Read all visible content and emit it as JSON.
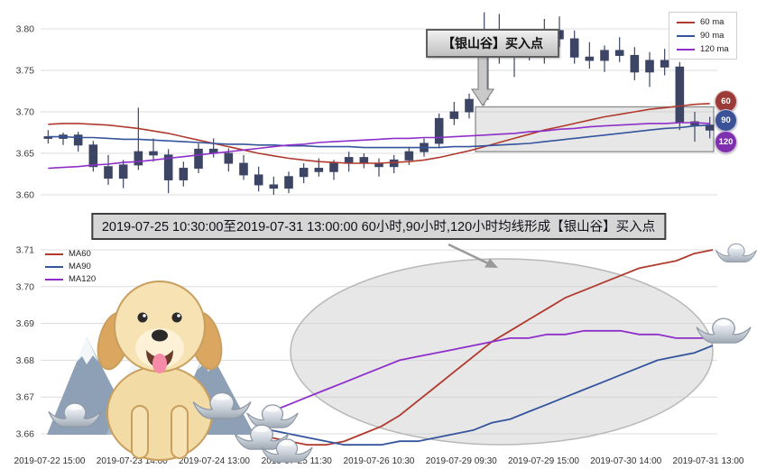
{
  "banner": {
    "text": "2019-07-25 10:30:00至2019-07-31 13:00:00 60小时,90小时,120小时均线形成【银山谷】买入点"
  },
  "top_chart": {
    "annotation_label": "【银山谷】买入点",
    "badges": [
      {
        "label": "60",
        "color": "#9c3a38"
      },
      {
        "label": "90",
        "color": "#3c5296"
      },
      {
        "label": "120",
        "color": "#7d2fae"
      }
    ]
  },
  "decorations": [
    "mountains",
    "golden-retriever-puppy",
    "silver-ingots"
  ],
  "chart_data": [
    {
      "type": "candlestick",
      "x_labels": [
        "2019-07-22 15:00",
        "2019-07-23 14:00",
        "2019-07-24 13:00",
        "2019-07-25 11:30",
        "2019-07-26 10:30",
        "2019-07-29 09:30",
        "2019-07-29 15:00",
        "2019-07-30 14:00",
        "2019-07-31 13:00"
      ],
      "yticks": [
        3.8,
        3.75,
        3.7,
        3.65,
        3.6
      ],
      "ylim": [
        3.587,
        3.826
      ],
      "grid": true,
      "legend_position": "upper right",
      "candle_color": "#3d4565",
      "candles": [
        [
          3.67,
          3.678,
          3.662,
          3.668
        ],
        [
          3.668,
          3.675,
          3.66,
          3.672
        ],
        [
          3.672,
          3.676,
          3.652,
          3.66
        ],
        [
          3.66,
          3.665,
          3.628,
          3.634
        ],
        [
          3.634,
          3.648,
          3.612,
          3.62
        ],
        [
          3.62,
          3.642,
          3.608,
          3.636
        ],
        [
          3.636,
          3.705,
          3.63,
          3.652
        ],
        [
          3.652,
          3.668,
          3.64,
          3.648
        ],
        [
          3.648,
          3.655,
          3.602,
          3.618
        ],
        [
          3.618,
          3.64,
          3.61,
          3.632
        ],
        [
          3.632,
          3.662,
          3.626,
          3.655
        ],
        [
          3.655,
          3.668,
          3.645,
          3.65
        ],
        [
          3.65,
          3.656,
          3.628,
          3.638
        ],
        [
          3.638,
          3.648,
          3.618,
          3.624
        ],
        [
          3.624,
          3.634,
          3.604,
          3.612
        ],
        [
          3.612,
          3.622,
          3.6,
          3.608
        ],
        [
          3.608,
          3.628,
          3.602,
          3.622
        ],
        [
          3.622,
          3.638,
          3.614,
          3.632
        ],
        [
          3.632,
          3.644,
          3.622,
          3.628
        ],
        [
          3.628,
          3.642,
          3.618,
          3.638
        ],
        [
          3.638,
          3.652,
          3.628,
          3.645
        ],
        [
          3.645,
          3.65,
          3.632,
          3.638
        ],
        [
          3.638,
          3.644,
          3.622,
          3.634
        ],
        [
          3.634,
          3.648,
          3.626,
          3.642
        ],
        [
          3.642,
          3.658,
          3.636,
          3.652
        ],
        [
          3.652,
          3.668,
          3.646,
          3.662
        ],
        [
          3.662,
          3.698,
          3.656,
          3.692
        ],
        [
          3.692,
          3.712,
          3.684,
          3.7
        ],
        [
          3.7,
          3.722,
          3.692,
          3.715
        ],
        [
          3.715,
          3.82,
          3.708,
          3.788
        ],
        [
          3.788,
          3.818,
          3.758,
          3.768
        ],
        [
          3.768,
          3.792,
          3.742,
          3.785
        ],
        [
          3.785,
          3.8,
          3.762,
          3.772
        ],
        [
          3.772,
          3.812,
          3.758,
          3.798
        ],
        [
          3.798,
          3.815,
          3.778,
          3.788
        ],
        [
          3.788,
          3.798,
          3.758,
          3.766
        ],
        [
          3.766,
          3.784,
          3.752,
          3.762
        ],
        [
          3.762,
          3.78,
          3.748,
          3.774
        ],
        [
          3.774,
          3.79,
          3.76,
          3.768
        ],
        [
          3.768,
          3.778,
          3.738,
          3.748
        ],
        [
          3.748,
          3.772,
          3.73,
          3.762
        ],
        [
          3.762,
          3.776,
          3.744,
          3.754
        ],
        [
          3.754,
          3.76,
          3.678,
          3.688
        ],
        [
          3.688,
          3.7,
          3.664,
          3.684
        ],
        [
          3.684,
          3.694,
          3.668,
          3.678
        ]
      ],
      "series": [
        {
          "name": "60 ma",
          "color": "#b03a2e",
          "values": [
            3.685,
            3.686,
            3.686,
            3.685,
            3.684,
            3.682,
            3.68,
            3.677,
            3.674,
            3.67,
            3.666,
            3.662,
            3.658,
            3.654,
            3.65,
            3.647,
            3.644,
            3.642,
            3.64,
            3.639,
            3.638,
            3.638,
            3.638,
            3.639,
            3.64,
            3.642,
            3.645,
            3.649,
            3.653,
            3.658,
            3.663,
            3.668,
            3.673,
            3.678,
            3.682,
            3.686,
            3.69,
            3.694,
            3.697,
            3.7,
            3.703,
            3.705,
            3.707,
            3.709,
            3.71
          ]
        },
        {
          "name": "90 ma",
          "color": "#34549c",
          "values": [
            3.67,
            3.67,
            3.669,
            3.669,
            3.668,
            3.667,
            3.667,
            3.666,
            3.665,
            3.664,
            3.663,
            3.662,
            3.661,
            3.661,
            3.66,
            3.66,
            3.659,
            3.659,
            3.658,
            3.658,
            3.658,
            3.657,
            3.657,
            3.657,
            3.657,
            3.657,
            3.657,
            3.658,
            3.658,
            3.659,
            3.66,
            3.661,
            3.662,
            3.664,
            3.666,
            3.668,
            3.67,
            3.672,
            3.674,
            3.676,
            3.678,
            3.68,
            3.681,
            3.683,
            3.684
          ]
        },
        {
          "name": "120 ma",
          "color": "#8e2fc9",
          "values": [
            3.632,
            3.633,
            3.634,
            3.636,
            3.637,
            3.639,
            3.64,
            3.642,
            3.644,
            3.646,
            3.648,
            3.65,
            3.652,
            3.654,
            3.656,
            3.658,
            3.66,
            3.661,
            3.663,
            3.664,
            3.665,
            3.666,
            3.667,
            3.668,
            3.668,
            3.669,
            3.669,
            3.67,
            3.671,
            3.672,
            3.673,
            3.674,
            3.676,
            3.677,
            3.679,
            3.68,
            3.682,
            3.683,
            3.684,
            3.685,
            3.686,
            3.686,
            3.687,
            3.687,
            3.686
          ]
        }
      ],
      "highlight_box": {
        "price_from": 3.652,
        "price_to": 3.706,
        "x_from_label": "2019-07-29 09:30",
        "x_to_label": "2019-07-31 13:00"
      }
    },
    {
      "type": "line",
      "x_axis": "shared with top chart; lines span 2019-07-25 11:30 to 2019-07-31 13:00",
      "yticks": [
        3.71,
        3.7,
        3.69,
        3.68,
        3.67,
        3.66
      ],
      "ylim": [
        3.6555,
        3.7117
      ],
      "grid": true,
      "legend_position": "upper left",
      "highlight_ellipse": "large gray ellipse marking the MA crossover (silver valley) region",
      "series": [
        {
          "name": "MA60",
          "color": "#b03a2e",
          "values": [
            3.659,
            3.658,
            3.657,
            3.657,
            3.658,
            3.66,
            3.662,
            3.665,
            3.669,
            3.673,
            3.677,
            3.681,
            3.685,
            3.688,
            3.691,
            3.694,
            3.697,
            3.699,
            3.701,
            3.703,
            3.705,
            3.706,
            3.707,
            3.709,
            3.71
          ]
        },
        {
          "name": "MA90",
          "color": "#34549c",
          "values": [
            3.661,
            3.66,
            3.659,
            3.658,
            3.657,
            3.657,
            3.657,
            3.658,
            3.658,
            3.659,
            3.66,
            3.661,
            3.663,
            3.664,
            3.666,
            3.668,
            3.67,
            3.672,
            3.674,
            3.676,
            3.678,
            3.68,
            3.681,
            3.682,
            3.684
          ]
        },
        {
          "name": "MA120",
          "color": "#8e2fc9",
          "values": [
            3.666,
            3.668,
            3.67,
            3.672,
            3.674,
            3.676,
            3.678,
            3.68,
            3.681,
            3.682,
            3.683,
            3.684,
            3.685,
            3.686,
            3.686,
            3.687,
            3.687,
            3.688,
            3.688,
            3.688,
            3.687,
            3.687,
            3.686,
            3.686,
            3.686
          ]
        }
      ]
    }
  ]
}
